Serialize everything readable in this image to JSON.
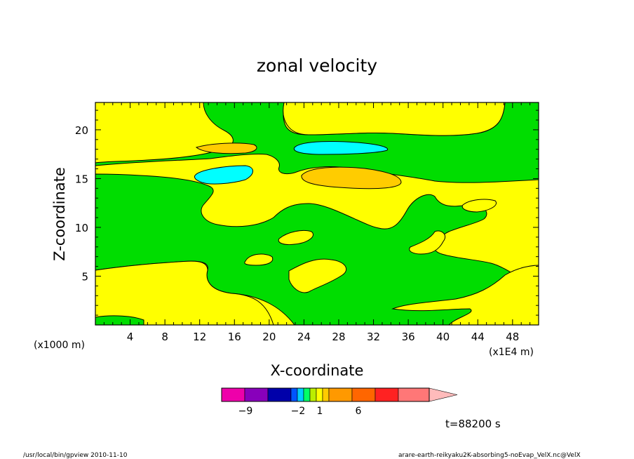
{
  "chart_data": {
    "type": "heatmap",
    "title": "zonal velocity",
    "xlabel": "X-coordinate",
    "ylabel": "Z-coordinate",
    "x_unit_note": "(x1E4 m)",
    "z_unit_note": "(x1000 m)",
    "xlim": [
      0,
      51
    ],
    "ylim": [
      0,
      22.8
    ],
    "x_ticks": [
      4,
      8,
      12,
      16,
      20,
      24,
      28,
      32,
      36,
      40,
      44,
      48
    ],
    "y_ticks": [
      5,
      10,
      15,
      20
    ],
    "colors": {
      "green": "#00dd00",
      "yellow": "#ffff00",
      "orange": "#ffcc00",
      "cyan": "#00ffff"
    },
    "colorbar": {
      "colors": [
        "#ee00aa",
        "#8800bb",
        "#0000aa",
        "#0055ff",
        "#00ccff",
        "#00ff66",
        "#bbee00",
        "#ffff00",
        "#ffcc00",
        "#ff9900",
        "#ff6600",
        "#ff2222",
        "#ff7777",
        "#ffbbbb"
      ],
      "tick_labels": [
        {
          "text": "−9",
          "value": -9
        },
        {
          "text": "−2",
          "value": -2
        },
        {
          "text": "1",
          "value": 1
        },
        {
          "text": "6",
          "value": 6
        }
      ]
    },
    "time_label": "t=88200 s"
  },
  "footer": {
    "left": "/usr/local/bin/gpview  2010-11-10",
    "right": "arare-earth-reikyaku2K-absorbing5-noEvap_VelX.nc@VelX"
  }
}
